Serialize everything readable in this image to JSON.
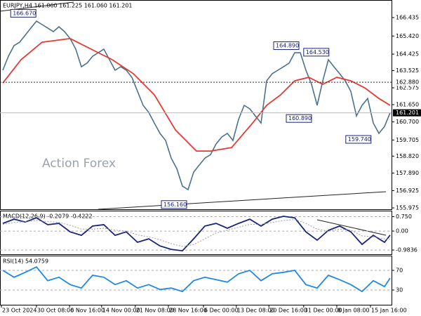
{
  "chart_data": [
    {
      "type": "line",
      "title": "EURJPY,H4 161.060 161.225 161.060 161.201",
      "watermark": "Action Forex",
      "x": [
        0,
        1,
        2,
        3,
        4,
        5,
        6,
        7,
        8,
        9,
        10,
        11,
        12,
        13,
        14,
        15,
        16,
        17,
        18,
        19,
        20,
        21,
        22,
        23,
        24,
        25,
        26,
        27,
        28,
        29,
        30,
        31,
        32,
        33,
        34,
        35,
        36,
        37,
        38,
        39,
        40,
        41,
        42,
        43,
        44,
        45,
        46,
        47,
        48,
        49,
        50,
        51,
        52,
        53,
        54,
        55,
        56,
        57,
        58,
        59,
        60,
        61,
        62,
        63,
        64,
        65,
        66,
        67,
        68,
        69
      ],
      "xlim": [
        -0.5,
        69.25
      ],
      "ylim": [
        155.9,
        167.4
      ],
      "grid": false,
      "yticks": [
        {
          "value": 166.435,
          "label": "166.435"
        },
        {
          "value": 165.42,
          "label": "165.420"
        },
        {
          "value": 164.425,
          "label": "164.425"
        },
        {
          "value": 163.525,
          "label": "163.525"
        },
        {
          "value": 162.575,
          "label": "162.575"
        },
        {
          "value": 161.65,
          "label": "161.650"
        },
        {
          "value": 160.7,
          "label": "160.700"
        },
        {
          "value": 159.705,
          "label": "159.705"
        },
        {
          "value": 158.82,
          "label": "158.820"
        },
        {
          "value": 157.89,
          "label": "157.890"
        },
        {
          "value": 156.925,
          "label": "156.925"
        },
        {
          "value": 155.975,
          "label": "155.975"
        }
      ],
      "series": [
        {
          "color": "#4a7290",
          "values": [
            163.54,
            164.31,
            164.89,
            165.08,
            165.47,
            165.86,
            166.24,
            166.05,
            165.86,
            165.66,
            165.93,
            165.66,
            165.28,
            164.7,
            163.73,
            163.93,
            164.31,
            164.5,
            164.7,
            164.12,
            163.54,
            163.73,
            163.54,
            163.15,
            162.38,
            161.61,
            161.22,
            160.64,
            160.07,
            159.68,
            158.71,
            158.13,
            157.17,
            156.98,
            157.94,
            158.33,
            158.71,
            158.9,
            159.49,
            159.87,
            160.07,
            159.68,
            160.84,
            161.61,
            161.42,
            161.03,
            160.64,
            162.96,
            163.35,
            163.54,
            163.73,
            163.93,
            164.5,
            164.5,
            163.54,
            162.77,
            161.61,
            162.96,
            164.12,
            163.73,
            163.35,
            162.96,
            162.38,
            161.03,
            161.61,
            161.99,
            160.64,
            160.07,
            160.45,
            161.2
          ]
        },
        {
          "color": "#e53935",
          "x": [
            0,
            3.25,
            7,
            12,
            15.75,
            19.5,
            23.25,
            27,
            30.75,
            34.5,
            37,
            40.75,
            44.5,
            47,
            49.5,
            52,
            54.5,
            57,
            59.5,
            62,
            64.5,
            67,
            69
          ],
          "values": [
            162.84,
            164.12,
            165.08,
            165.28,
            164.7,
            164.12,
            163.35,
            162.19,
            160.26,
            159.1,
            159.1,
            159.29,
            160.64,
            161.61,
            162.19,
            162.96,
            163.15,
            162.77,
            163.15,
            162.96,
            162.57,
            161.99,
            161.61
          ]
        }
      ],
      "annotations": [
        {
          "x": 1.4,
          "value": 166.67,
          "label": "166.670"
        },
        {
          "x": 48.25,
          "value": 164.89,
          "label": "164.890"
        },
        {
          "x": 53.6,
          "value": 164.53,
          "label": "164.530"
        },
        {
          "x": 50.5,
          "value": 160.89,
          "label": "160.890"
        },
        {
          "x": 61.1,
          "value": 159.74,
          "label": "159.740"
        },
        {
          "x": 28.25,
          "value": 156.16,
          "label": "156.160"
        }
      ],
      "hlines": [
        {
          "value": 162.88,
          "label": "162.880",
          "style": "dotted"
        },
        {
          "value": 161.201,
          "label": "161.201",
          "style": "current"
        }
      ]
    },
    {
      "type": "line",
      "title": "MACD(12,26,9) -0.2079 -0.4222",
      "x": [
        0,
        2,
        4,
        6,
        8,
        10,
        12,
        14,
        16,
        18,
        20,
        22,
        24,
        26,
        28,
        30,
        32,
        34,
        36,
        38,
        40,
        42,
        44,
        46,
        48,
        50,
        52,
        54,
        56,
        58,
        60,
        62,
        64,
        66,
        68,
        69
      ],
      "xlim": [
        -0.5,
        69.25
      ],
      "ylim": [
        -1.2,
        1.06
      ],
      "grid": "dashed",
      "yticks": [
        {
          "value": 0.75,
          "label": "0.750"
        },
        {
          "value": 0,
          "label": "0.00"
        },
        -0.9836
      ],
      "series": [
        {
          "color": "#1a237e",
          "values": [
            0.4,
            0.62,
            0.47,
            0.69,
            0.33,
            0.4,
            -0.04,
            -0.22,
            0.26,
            0.33,
            -0.22,
            -0.04,
            -0.58,
            -0.4,
            -0.77,
            -0.95,
            -1.02,
            -0.4,
            0.26,
            0.4,
            0.15,
            0.4,
            0.62,
            0.26,
            0.62,
            0.77,
            0.69,
            -0.04,
            -0.47,
            0.04,
            0.26,
            -0.04,
            -0.69,
            -0.22,
            -0.58,
            -0.21
          ]
        },
        {
          "color": "#9e9e9e",
          "dash": true,
          "values": [
            0.35,
            0.45,
            0.48,
            0.55,
            0.5,
            0.45,
            0.3,
            0.1,
            0.1,
            0.15,
            0.05,
            0,
            -0.2,
            -0.3,
            -0.45,
            -0.65,
            -0.8,
            -0.7,
            -0.4,
            -0.1,
            0.05,
            0.2,
            0.35,
            0.35,
            0.45,
            0.55,
            0.6,
            0.4,
            0.1,
            0,
            0.1,
            0.05,
            -0.25,
            -0.3,
            -0.4,
            -0.42
          ]
        }
      ]
    },
    {
      "type": "line",
      "title": "RSI(14) 54.0759",
      "x": [
        0,
        2,
        4,
        6,
        8,
        10,
        12,
        14,
        16,
        18,
        20,
        22,
        24,
        26,
        28,
        30,
        32,
        34,
        36,
        38,
        40,
        42,
        44,
        46,
        48,
        50,
        52,
        54,
        56,
        58,
        60,
        62,
        64,
        66,
        68,
        69
      ],
      "xlim": [
        -0.5,
        69.25
      ],
      "ylim": [
        0,
        100
      ],
      "grid": "dashed",
      "yticks": [
        70,
        30
      ],
      "series": [
        {
          "color": "#1e88e5",
          "values": [
            70,
            56,
            66,
            77,
            49,
            56,
            41,
            34,
            60,
            56,
            41,
            49,
            34,
            41,
            31,
            34,
            27,
            49,
            56,
            51,
            46,
            63,
            70,
            49,
            63,
            66,
            70,
            41,
            34,
            60,
            51,
            41,
            27,
            49,
            37,
            54.08
          ]
        }
      ],
      "xticks": [
        {
          "value": -0.25,
          "label": "23 Oct 2024"
        },
        {
          "value": 6,
          "label": "30 Oct 08:00"
        },
        {
          "value": 11.9,
          "label": "6 Nov 16:00"
        },
        {
          "value": 17.6,
          "label": "14 Nov 00:00"
        },
        {
          "value": 23.6,
          "label": "21 Nov 08:00"
        },
        {
          "value": 29.5,
          "label": "28 Nov 16:00"
        },
        {
          "value": 35.75,
          "label": "6 Dec 00:00"
        },
        {
          "value": 41.6,
          "label": "13 Dec 08:00"
        },
        {
          "value": 47.4,
          "label": "20 Dec 16:00"
        },
        {
          "value": 53.6,
          "label": "31 Dec 00:00"
        },
        {
          "value": 59.5,
          "label": "8 Jan 08:00"
        },
        {
          "value": 65.5,
          "label": "15 Jan 16:00"
        }
      ]
    }
  ]
}
